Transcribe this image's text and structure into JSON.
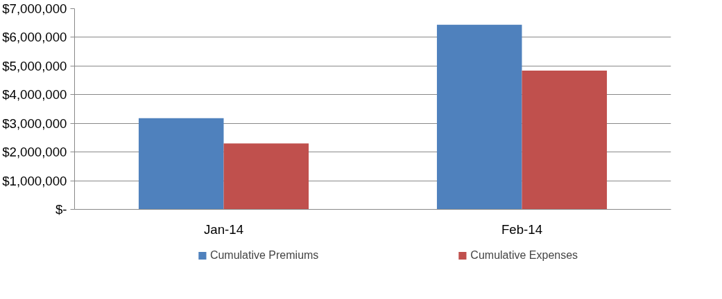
{
  "chart_data": {
    "type": "bar",
    "categories": [
      "Jan-14",
      "Feb-14"
    ],
    "series": [
      {
        "name": "Cumulative Premiums",
        "color": "#4f81bd",
        "values": [
          3180000,
          6440000
        ]
      },
      {
        "name": "Cumulative Expenses",
        "color": "#c0504d",
        "values": [
          2300000,
          4840000
        ]
      }
    ],
    "ylim": [
      0,
      7000000
    ],
    "yticks": [
      {
        "value": 0,
        "label": "$-"
      },
      {
        "value": 1000000,
        "label": "$1,000,000"
      },
      {
        "value": 2000000,
        "label": "$2,000,000"
      },
      {
        "value": 3000000,
        "label": "$3,000,000"
      },
      {
        "value": 4000000,
        "label": "$4,000,000"
      },
      {
        "value": 5000000,
        "label": "$5,000,000"
      },
      {
        "value": 6000000,
        "label": "$6,000,000"
      },
      {
        "value": 7000000,
        "label": "$7,000,000"
      }
    ],
    "grid": "y",
    "legend": "bottom"
  }
}
